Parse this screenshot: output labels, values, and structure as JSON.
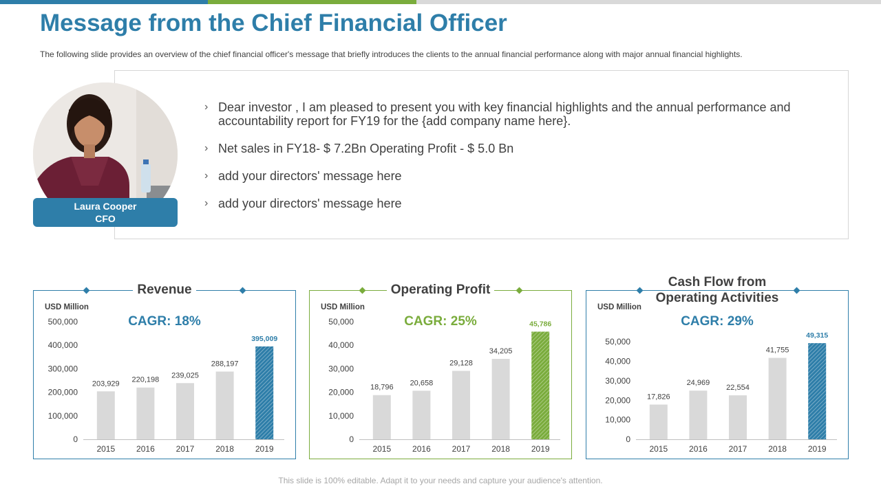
{
  "colors": {
    "blue": "#2e7ea9",
    "green": "#7aac3c",
    "gray_bar": "#d9d9d9",
    "top_bar_gray": "#d9d9d9"
  },
  "header": {
    "title": "Message from the Chief Financial Officer",
    "subtitle": "The following  slide provides  an overview  of the chief financial  officer's  message  that briefly  introduces  the clients to the annual  financial  performance  along with major annual  financial  highlights."
  },
  "profile": {
    "name": "Laura Cooper",
    "role": "CFO"
  },
  "message": {
    "bullets": [
      "Dear investor , I am pleased to present you with key financial highlights and the annual performance and accountability report for FY19 for the {add company name here}.",
      "Net sales in FY18- $ 7.2Bn Operating Profit - $ 5.0 Bn",
      "add your directors' message here",
      "add your directors' message here"
    ]
  },
  "footer": {
    "note": "This slide is 100% editable. Adapt it to your needs and capture your audience's attention."
  },
  "chart_data": [
    {
      "type": "bar",
      "title": "Revenue",
      "ylabel": "USD Million",
      "cagr_label": "CAGR: 18%",
      "accent": "#2e7ea9",
      "highlight_style": "hatched",
      "categories": [
        "2015",
        "2016",
        "2017",
        "2018",
        "2019"
      ],
      "values": [
        203929,
        220198,
        239025,
        288197,
        395009
      ],
      "value_labels": [
        "203,929",
        "220,198",
        "239,025",
        "288,197",
        "395,009"
      ],
      "ylim": [
        0,
        500000
      ],
      "yticks": [
        0,
        100000,
        200000,
        300000,
        400000,
        500000
      ],
      "ytick_labels": [
        "0",
        "100,000",
        "200,000",
        "300,000",
        "400,000",
        "500,000"
      ]
    },
    {
      "type": "bar",
      "title": "Operating Profit",
      "ylabel": "USD Million",
      "cagr_label": "CAGR: 25%",
      "accent": "#7aac3c",
      "highlight_style": "hatched",
      "categories": [
        "2015",
        "2016",
        "2017",
        "2018",
        "2019"
      ],
      "values": [
        18796,
        20658,
        29128,
        34205,
        45786
      ],
      "value_labels": [
        "18,796",
        "20,658",
        "29,128",
        "34,205",
        "45,786"
      ],
      "ylim": [
        0,
        50000
      ],
      "yticks": [
        0,
        10000,
        20000,
        30000,
        40000,
        50000
      ],
      "ytick_labels": [
        "0",
        "10,000",
        "20,000",
        "30,000",
        "40,000",
        "50,000"
      ]
    },
    {
      "type": "bar",
      "title": "Cash Flow from Operating Activities",
      "title_lines": [
        "Cash Flow from",
        "Operating Activities"
      ],
      "ylabel": "USD Million",
      "cagr_label": "CAGR: 29%",
      "accent": "#2e7ea9",
      "highlight_style": "hatched",
      "categories": [
        "2015",
        "2016",
        "2017",
        "2018",
        "2019"
      ],
      "values": [
        17826,
        24969,
        22554,
        41755,
        49315
      ],
      "value_labels": [
        "17,826",
        "24,969",
        "22,554",
        "41,755",
        "49,315"
      ],
      "ylim": [
        0,
        55000
      ],
      "yticks": [
        0,
        10000,
        20000,
        30000,
        40000,
        50000
      ],
      "ytick_labels": [
        "0",
        "10,000",
        "20,000",
        "30,000",
        "40,000",
        "50,000"
      ]
    }
  ]
}
